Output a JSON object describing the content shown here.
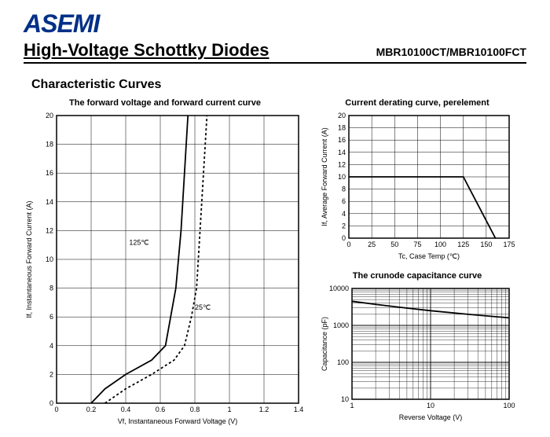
{
  "logo_text": "ASEMI",
  "main_title": "High-Voltage Schottky Diodes",
  "part_number": "MBR10100CT/MBR10100FCT",
  "section_title": "Characteristic Curves",
  "colors": {
    "logo": "#003087",
    "axis": "#000000",
    "grid": "#000000",
    "curve": "#000000",
    "bg": "#ffffff"
  },
  "chart1": {
    "title": "The forward voltage and forward current curve",
    "xlabel": "Vf, Instantaneous Forward Voltage (V)",
    "ylabel": "If, Instantaneous Forward Current (A)",
    "xlim": [
      0,
      1.4
    ],
    "xtick_step": 0.2,
    "ylim": [
      0,
      20
    ],
    "ytick_step": 2,
    "curve_125": {
      "label": "125℃",
      "dashed": false,
      "points": [
        [
          0.2,
          0
        ],
        [
          0.28,
          1
        ],
        [
          0.4,
          2
        ],
        [
          0.55,
          3
        ],
        [
          0.63,
          4
        ],
        [
          0.66,
          6
        ],
        [
          0.69,
          8
        ],
        [
          0.72,
          12
        ],
        [
          0.74,
          16
        ],
        [
          0.76,
          20
        ]
      ]
    },
    "curve_25": {
      "label": "25℃",
      "dashed": true,
      "points": [
        [
          0.28,
          0
        ],
        [
          0.4,
          1
        ],
        [
          0.55,
          2
        ],
        [
          0.68,
          3
        ],
        [
          0.74,
          4
        ],
        [
          0.78,
          6
        ],
        [
          0.81,
          8
        ],
        [
          0.83,
          12
        ],
        [
          0.85,
          16
        ],
        [
          0.87,
          20
        ]
      ]
    },
    "label_125_pos": [
      0.42,
      11
    ],
    "label_25_pos": [
      0.8,
      6.5
    ]
  },
  "chart2": {
    "title": "Current derating curve, perelement",
    "xlabel": "Tc, Case Temp (℃)",
    "ylabel": "If, Average Forward Current (A)",
    "xlim": [
      0,
      175
    ],
    "xtick_step": 25,
    "ylim": [
      0,
      20
    ],
    "ytick_step": 2,
    "curve": {
      "dashed": false,
      "points": [
        [
          0,
          10
        ],
        [
          125,
          10
        ],
        [
          160,
          0
        ]
      ]
    }
  },
  "chart3": {
    "title": "The crunode capacitance curve",
    "xlabel": "Reverse Voltage (V)",
    "ylabel": "Capacitance (pF)",
    "x_log": true,
    "xlim": [
      1,
      100
    ],
    "xticks": [
      1,
      10,
      100
    ],
    "y_log": true,
    "ylim": [
      10,
      10000
    ],
    "yticks": [
      10,
      100,
      1000,
      10000
    ],
    "curve": {
      "dashed": false,
      "points": [
        [
          1,
          4500
        ],
        [
          2,
          3700
        ],
        [
          4,
          3100
        ],
        [
          10,
          2500
        ],
        [
          30,
          2000
        ],
        [
          100,
          1600
        ]
      ]
    }
  }
}
